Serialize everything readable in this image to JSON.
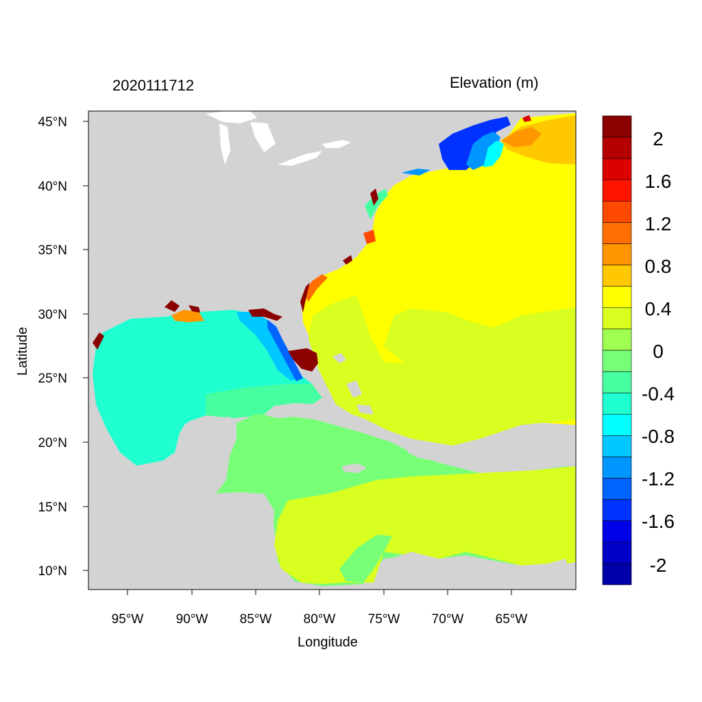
{
  "header": {
    "date_label": "2020111712",
    "variable_label": "Elevation (m)"
  },
  "axes": {
    "xlabel": "Longitude",
    "ylabel": "Latitude",
    "lon_ticks": [
      "95°W",
      "90°W",
      "85°W",
      "80°W",
      "75°W",
      "70°W",
      "65°W"
    ],
    "lat_ticks": [
      "45°N",
      "40°N",
      "35°N",
      "30°N",
      "25°N",
      "20°N",
      "15°N",
      "10°N"
    ]
  },
  "colorbar": {
    "labels": [
      "2",
      "1.6",
      "1.2",
      "0.8",
      "0.4",
      "0",
      "-0.4",
      "-0.8",
      "-1.2",
      "-1.6",
      "-2"
    ],
    "colors": [
      "#8b0000",
      "#b40000",
      "#dc0000",
      "#ff1400",
      "#ff4800",
      "#ff6e00",
      "#ff9600",
      "#ffc800",
      "#ffff00",
      "#d8ff20",
      "#a0ff50",
      "#78ff78",
      "#46ffa0",
      "#20ffd0",
      "#00ffff",
      "#00c8ff",
      "#0096ff",
      "#0064ff",
      "#0032ff",
      "#0000e6",
      "#0000c8",
      "#0000aa"
    ]
  },
  "colors": {
    "land": "#d3d3d3",
    "ocean_main": "#ffff00",
    "gulf": "#20ffd0",
    "caribbean": "#78ff78",
    "south_atlantic": "#d8ff20",
    "surge_high": "#8b0000",
    "surge_low": "#0032ff"
  }
}
